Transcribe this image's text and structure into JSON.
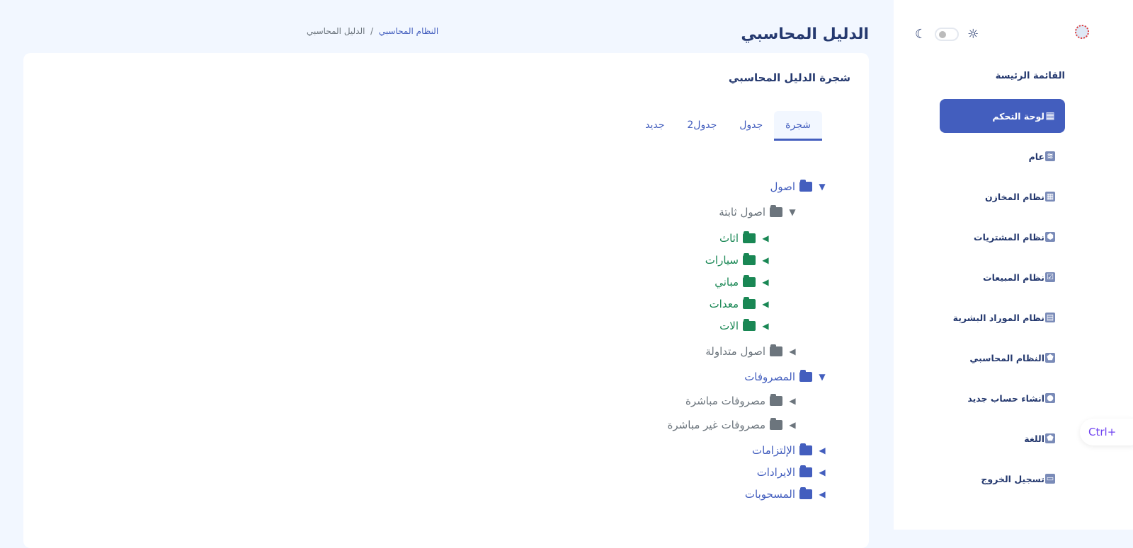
{
  "header": {
    "title": "الدليل المحاسبي",
    "breadcrumb": [
      "النظام المحاسبي",
      "الدليل المحاسبي"
    ],
    "breadcrumb_sep": "/"
  },
  "sidebar": {
    "menu_title": "القائمة الرئيسة",
    "items": [
      {
        "label": "لوحة التحكم",
        "icon": "grid-icon",
        "active": true
      },
      {
        "label": "عام",
        "icon": "layers-icon"
      },
      {
        "label": "نظام المخازن",
        "icon": "grid-icon"
      },
      {
        "label": "نظام المشتريات",
        "icon": "hexagon-icon"
      },
      {
        "label": "نظام المبيعات",
        "icon": "check-box-icon"
      },
      {
        "label": "نظام الموراد البشرية",
        "icon": "spreadsheet-icon"
      },
      {
        "label": "النظام المحاسبي",
        "icon": "pentagon-icon"
      },
      {
        "label": "انشاء حساب جديد",
        "icon": "drop-icon"
      },
      {
        "label": "اللغة",
        "icon": "pentagon-icon"
      },
      {
        "label": "تسجيل الخروج",
        "icon": "cash-icon"
      }
    ],
    "theme_toggle": {
      "dark_mode": false
    }
  },
  "shortcut_hint": "Ctrl+",
  "card": {
    "title": "شجرة الدليل المحاسبي",
    "tabs": [
      "شجرة",
      "جدول",
      "جدول2",
      "جديد"
    ],
    "active_tab": 0
  },
  "tree": [
    {
      "label": "اصول",
      "level": 0,
      "expanded": true,
      "color": "#435ebe"
    },
    {
      "label": "اصول ثابتة",
      "level": 1,
      "expanded": true,
      "color": "#6c757d"
    },
    {
      "label": "اثاث",
      "level": 2,
      "expanded": false,
      "color": "#198754"
    },
    {
      "label": "سيارات",
      "level": 2,
      "expanded": false,
      "color": "#198754"
    },
    {
      "label": "مباني",
      "level": 2,
      "expanded": false,
      "color": "#198754"
    },
    {
      "label": "معدات",
      "level": 2,
      "expanded": false,
      "color": "#198754"
    },
    {
      "label": "الات",
      "level": 2,
      "expanded": false,
      "color": "#198754"
    },
    {
      "label": "اصول متداولة",
      "level": 1,
      "expanded": false,
      "color": "#6c757d"
    },
    {
      "label": "المصروفات",
      "level": 0,
      "expanded": true,
      "color": "#435ebe"
    },
    {
      "label": "مصروفات مباشرة",
      "level": 1,
      "expanded": false,
      "color": "#6c757d"
    },
    {
      "label": "مصروفات غير مباشرة",
      "level": 1,
      "expanded": false,
      "color": "#6c757d"
    },
    {
      "label": "الإلتزامات",
      "level": 0,
      "expanded": false,
      "color": "#435ebe"
    },
    {
      "label": "الايرادات",
      "level": 0,
      "expanded": false,
      "color": "#435ebe"
    },
    {
      "label": "المسحوبات",
      "level": 0,
      "expanded": false,
      "color": "#435ebe"
    }
  ]
}
